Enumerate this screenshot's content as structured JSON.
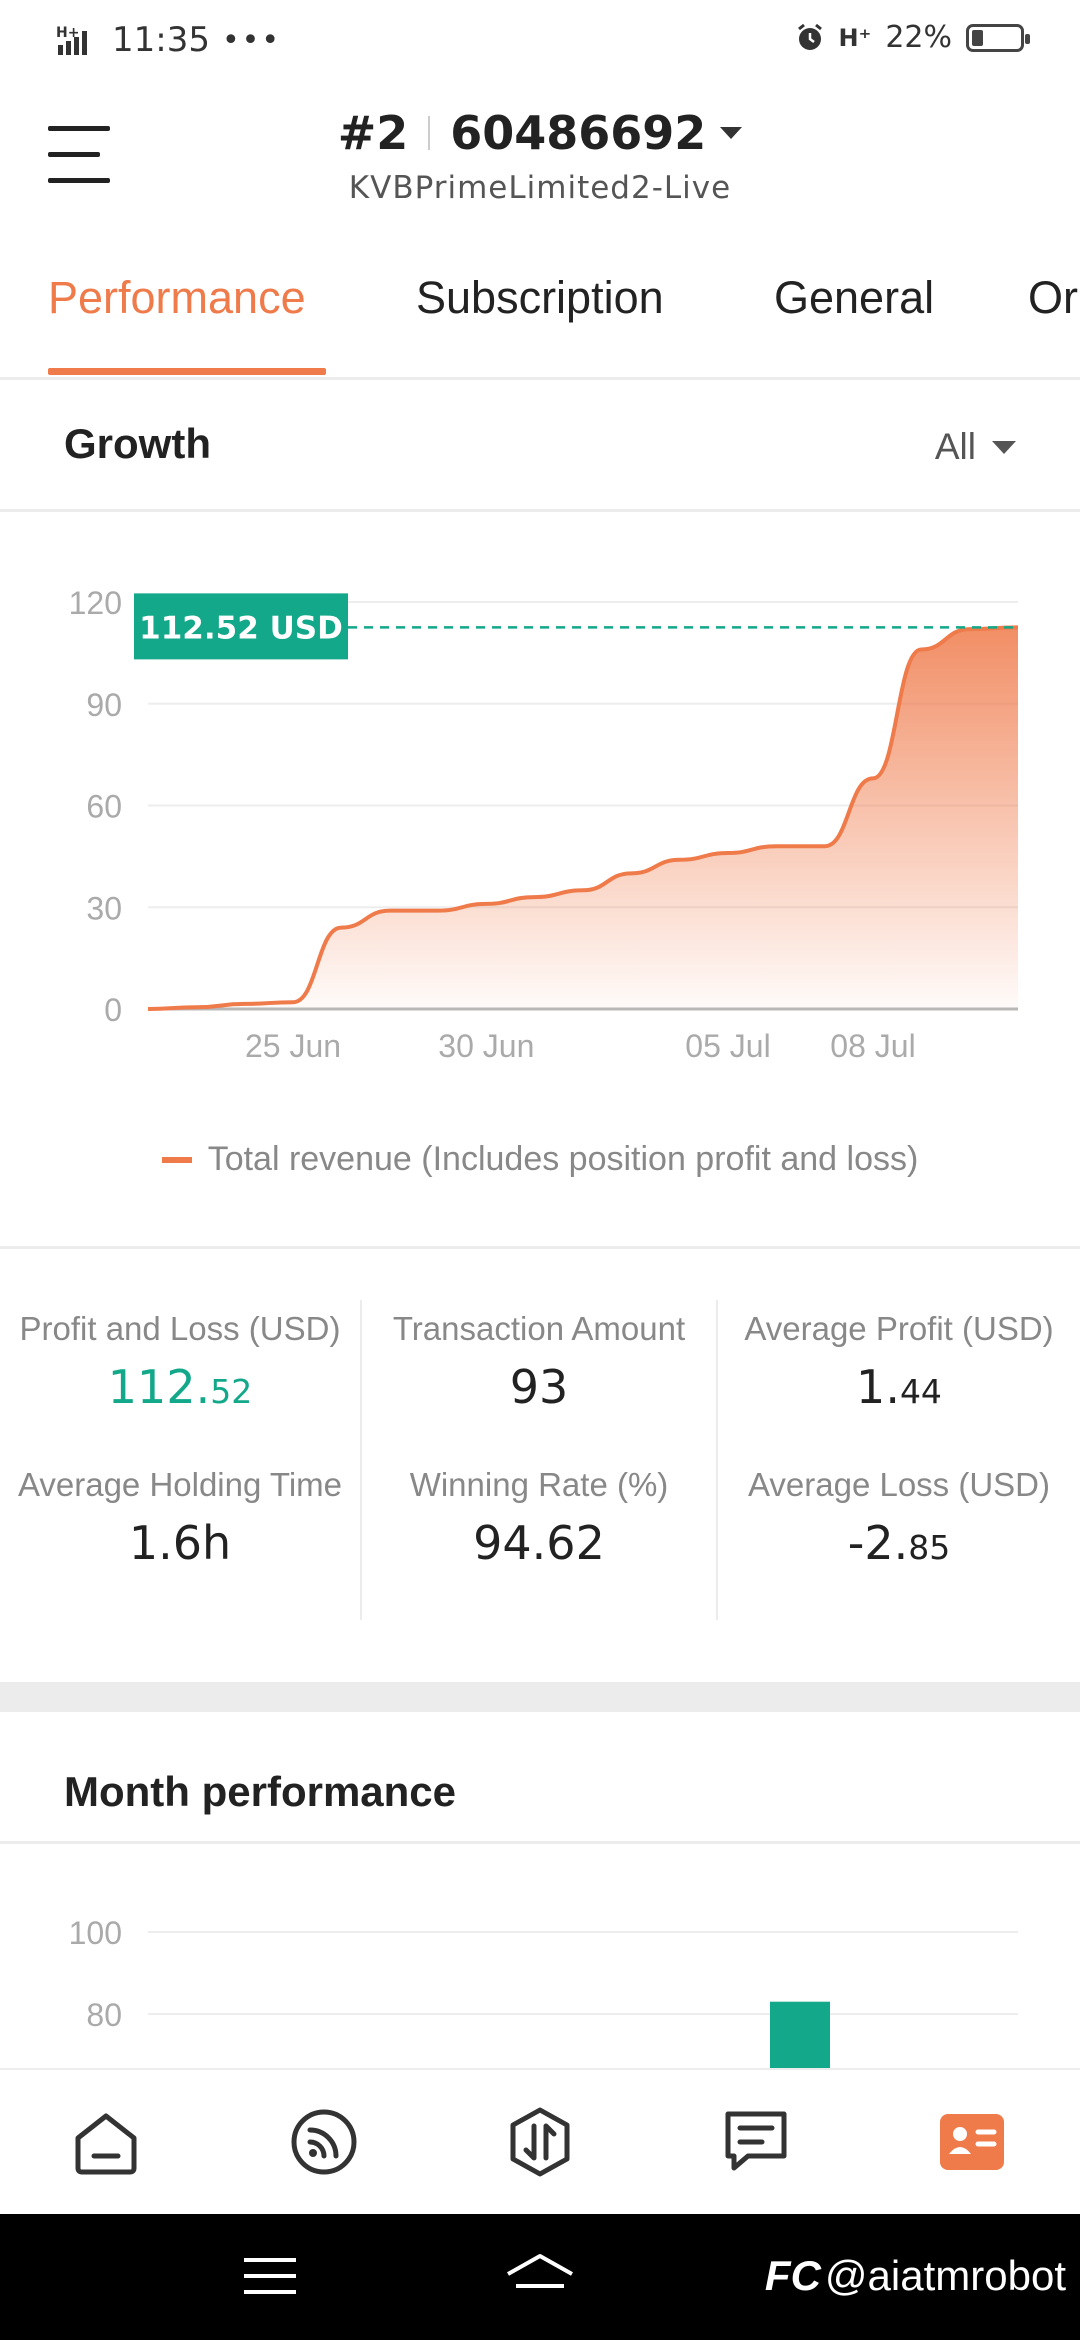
{
  "status_bar": {
    "time": "11:35",
    "dots": "•••",
    "network": "H⁺",
    "battery_percent": "22%",
    "battery_level": 0.22
  },
  "header": {
    "account_index": "#2",
    "account_number": "60486692",
    "server": "KVBPrimeLimited2-Live"
  },
  "tabs": [
    {
      "label": "Performance",
      "active": true
    },
    {
      "label": "Subscription",
      "active": false
    },
    {
      "label": "General",
      "active": false
    },
    {
      "label": "Or",
      "active": false
    }
  ],
  "growth": {
    "title": "Growth",
    "range_label": "All"
  },
  "chart_data": {
    "type": "area",
    "yticks": [
      0,
      30,
      60,
      90,
      120
    ],
    "ylim": [
      0,
      120
    ],
    "xticks": [
      "25 Jun",
      "30 Jun",
      "05 Jul",
      "08 Jul"
    ],
    "x": [
      "20 Jun",
      "22 Jun",
      "24 Jun",
      "25 Jun",
      "26 Jun",
      "27 Jun",
      "28 Jun",
      "30 Jun",
      "01 Jul",
      "02 Jul",
      "03 Jul",
      "04 Jul",
      "05 Jul",
      "06 Jul",
      "07 Jul",
      "08 Jul",
      "09 Jul",
      "10 Jul",
      "11 Jul"
    ],
    "series": [
      {
        "name": "Total revenue (Includes position profit and loss)",
        "color": "#ef7a4a",
        "values": [
          0,
          0.5,
          1.5,
          2,
          24,
          29,
          29,
          31,
          33,
          35,
          40,
          44,
          46,
          48,
          48,
          68,
          106,
          112,
          112.52
        ]
      }
    ],
    "current_value_label": "112.52 USD",
    "current_value": 112.52,
    "label_color": "#13a88a",
    "legend": "Total revenue (Includes position profit and loss)"
  },
  "stats": {
    "pnl": {
      "label": "Profit and Loss (USD)",
      "int": "112.",
      "dec": "52"
    },
    "transactions": {
      "label": "Transaction Amount",
      "value": "93"
    },
    "avg_profit": {
      "label": "Average Profit (USD)",
      "int": "1.",
      "dec": "44"
    },
    "avg_holding": {
      "label": "Average Holding Time",
      "value": "1.6h"
    },
    "win_rate": {
      "label": "Winning Rate (%)",
      "value": "94.62"
    },
    "avg_loss": {
      "label": "Average Loss (USD)",
      "int": "-2.",
      "dec": "85"
    }
  },
  "month_performance": {
    "title": "Month performance",
    "yticks": [
      100,
      80
    ],
    "bar_color": "#13a88a",
    "bar_value": 83
  },
  "bottom_nav": [
    {
      "icon": "home-icon",
      "active": false
    },
    {
      "icon": "signal-feed-icon",
      "active": false
    },
    {
      "icon": "trade-icon",
      "active": false
    },
    {
      "icon": "messages-icon",
      "active": false
    },
    {
      "icon": "profile-card-icon",
      "active": true
    }
  ],
  "colors": {
    "accent": "#ef7a4a",
    "green": "#13a88a"
  },
  "watermark": "@aiatmrobot"
}
